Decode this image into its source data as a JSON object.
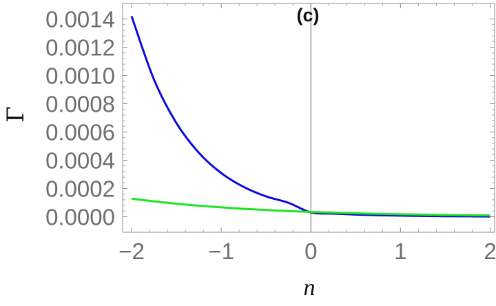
{
  "chart_data": {
    "type": "line",
    "title": "(c)",
    "xlabel": "n",
    "ylabel": "Γ",
    "xlim": [
      -2.1,
      2.05
    ],
    "ylim": [
      -0.00011,
      0.00151
    ],
    "x_ticks": [
      -2,
      -1,
      0,
      1,
      2
    ],
    "x_tick_labels": [
      "−2",
      "−1",
      "0",
      "1",
      "2"
    ],
    "y_ticks": [
      0,
      0.0002,
      0.0004,
      0.0006,
      0.0008,
      0.001,
      0.0012,
      0.0014
    ],
    "y_tick_labels": [
      "0.0000",
      "0.0002",
      "0.0004",
      "0.0006",
      "0.0008",
      "0.0010",
      "0.0012",
      "0.0014"
    ],
    "grid": false,
    "frame": true,
    "series": [
      {
        "color": "#0a0adc",
        "x": [
          -2,
          -1.75,
          -1.5,
          -1.25,
          -1,
          -0.75,
          -0.5,
          -0.25,
          0,
          0.25,
          0.5,
          0.75,
          1,
          1.25,
          1.5,
          1.75,
          2
        ],
        "y": [
          0.00142,
          0.000971,
          0.000663,
          0.000453,
          0.000309,
          0.000211,
          0.000144,
          9.85e-05,
          3.06e-05,
          2.16e-05,
          1.52e-05,
          1.07e-05,
          7.5e-06,
          5.3e-06,
          3.7e-06,
          2.6e-06,
          1.8e-06
        ]
      },
      {
        "color": "#1fe51f",
        "x": [
          -2,
          -1.75,
          -1.5,
          -1.25,
          -1,
          -0.75,
          -0.5,
          -0.25,
          0,
          0.25,
          0.5,
          0.75,
          1,
          1.25,
          1.5,
          1.75,
          2
        ],
        "y": [
          0.000128,
          0.000109,
          9.2e-05,
          7.8e-05,
          6.6e-05,
          5.6e-05,
          4.73e-05,
          4.01e-05,
          3.4e-05,
          2.88e-05,
          2.43e-05,
          2.06e-05,
          1.75e-05,
          1.48e-05,
          1.25e-05,
          1.06e-05,
          9e-06
        ]
      }
    ]
  }
}
